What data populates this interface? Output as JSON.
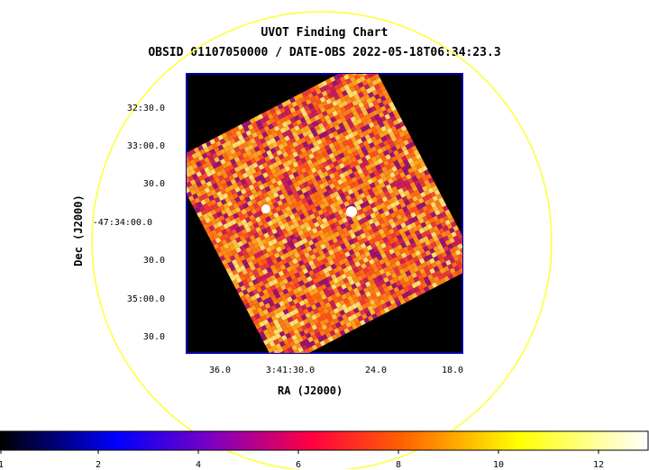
{
  "title": "UVOT Finding Chart",
  "subtitle": "OBSID 01107050000 / DATE-OBS 2022-05-18T06:34:23.3",
  "axes": {
    "xlabel": "RA (J2000)",
    "ylabel": "Dec (J2000)",
    "dec_ticks": [
      "32:30.0",
      "33:00.0",
      "30.0",
      "-47:34:00.0",
      "30.0",
      "35:00.0",
      "30.0"
    ],
    "ra_ticks": [
      "36.0",
      "3:41:30.0",
      "24.0",
      "18.0"
    ]
  },
  "colorbar": {
    "labels": [
      "1",
      "2",
      "4",
      "6",
      "8",
      "10",
      "12"
    ],
    "colormap": [
      "#000000",
      "#0000ff",
      "#8000c0",
      "#ff0040",
      "#ff6000",
      "#ffff00",
      "#ffffff"
    ]
  },
  "colors": {
    "circle": "#ffff33",
    "frame": "#0000aa",
    "background": "#000000"
  }
}
